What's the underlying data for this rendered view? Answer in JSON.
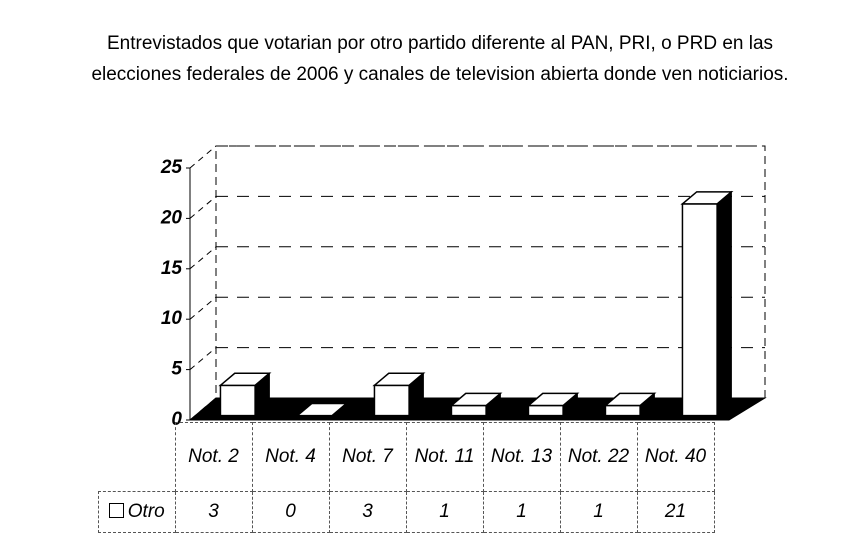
{
  "chart_data": {
    "type": "bar3d",
    "title": "Entrevistados que votarian por otro partido diferente al PAN, PRI, o PRD en las elecciones federales de 2006 y canales de television abierta donde ven noticiarios.",
    "categories": [
      "Not. 2",
      "Not. 4",
      "Not. 7",
      "Not. 11",
      "Not. 13",
      "Not. 22",
      "Not. 40"
    ],
    "series": [
      {
        "name": "Otro",
        "color": "#ffffff",
        "values": [
          3,
          0,
          3,
          1,
          1,
          1,
          21
        ]
      }
    ],
    "ylim": [
      0,
      25
    ],
    "yticks": [
      0,
      5,
      10,
      15,
      20,
      25
    ],
    "grid": true
  }
}
